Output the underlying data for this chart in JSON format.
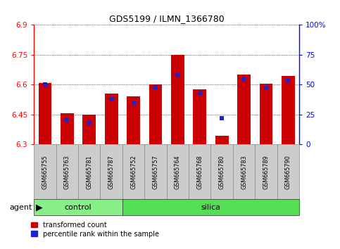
{
  "title": "GDS5199 / ILMN_1366780",
  "samples": [
    "GSM665755",
    "GSM665763",
    "GSM665781",
    "GSM665787",
    "GSM665752",
    "GSM665757",
    "GSM665764",
    "GSM665768",
    "GSM665780",
    "GSM665783",
    "GSM665789",
    "GSM665790"
  ],
  "groups": [
    "control",
    "control",
    "control",
    "control",
    "silica",
    "silica",
    "silica",
    "silica",
    "silica",
    "silica",
    "silica",
    "silica"
  ],
  "transformed_count": [
    6.61,
    6.455,
    6.45,
    6.555,
    6.54,
    6.6,
    6.748,
    6.575,
    6.345,
    6.65,
    6.605,
    6.645
  ],
  "percentile_rank": [
    50,
    20,
    18,
    38,
    35,
    48,
    58,
    43,
    22,
    55,
    47,
    53
  ],
  "ylim_left": [
    6.3,
    6.9
  ],
  "ylim_right": [
    0,
    100
  ],
  "yticks_left": [
    6.3,
    6.45,
    6.6,
    6.75,
    6.9
  ],
  "yticks_right": [
    0,
    25,
    50,
    75,
    100
  ],
  "ytick_labels_left": [
    "6.3",
    "6.45",
    "6.6",
    "6.75",
    "6.9"
  ],
  "ytick_labels_right": [
    "0",
    "25",
    "50",
    "75",
    "100%"
  ],
  "bar_color": "#cc0000",
  "dot_color": "#2222cc",
  "base_value": 6.3,
  "control_label": "control",
  "silica_label": "silica",
  "agent_label": "agent",
  "legend_transformed": "transformed count",
  "legend_percentile": "percentile rank within the sample",
  "control_bg": "#88ee88",
  "silica_bg": "#55dd55",
  "tick_bg": "#cccccc",
  "n_control": 4,
  "n_silica": 8
}
